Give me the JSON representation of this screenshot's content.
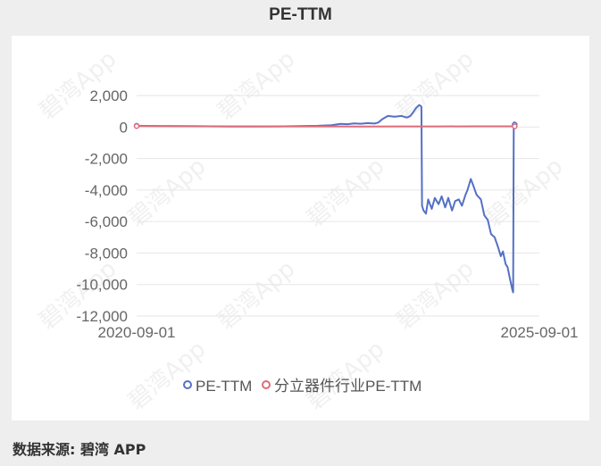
{
  "page": {
    "title": "PE-TTM",
    "source": "数据来源: 碧湾 APP",
    "watermark": "碧湾App"
  },
  "colors": {
    "pe_series": "#5470c6",
    "industry_series": "#e06c7a",
    "grid": "#e6e6e6",
    "axis_text": "#666666",
    "background": "#eeeeee",
    "panel": "#ffffff"
  },
  "chart_data": {
    "type": "line",
    "title": "PE-TTM",
    "xlabel": "",
    "ylabel": "",
    "ylim": [
      -12000,
      2000
    ],
    "yticks": [
      2000,
      0,
      -2000,
      -4000,
      -6000,
      -8000,
      -10000,
      -12000
    ],
    "ytick_labels": [
      "2,000",
      "0",
      "-2,000",
      "-4,000",
      "-6,000",
      "-8,000",
      "-10,000",
      "-12,000"
    ],
    "x_range": [
      "2020-09-01",
      "2025-09-01"
    ],
    "x_tick_labels": [
      "2020-09-01",
      "2025-09-01"
    ],
    "grid": true,
    "legend_position": "bottom",
    "series": [
      {
        "name": "PE-TTM",
        "color": "#5470c6",
        "points": [
          [
            "2020-09-01",
            80
          ],
          [
            "2020-12-01",
            70
          ],
          [
            "2021-03-01",
            60
          ],
          [
            "2021-06-01",
            50
          ],
          [
            "2021-09-01",
            40
          ],
          [
            "2021-12-01",
            30
          ],
          [
            "2022-03-01",
            30
          ],
          [
            "2022-06-01",
            40
          ],
          [
            "2022-09-01",
            60
          ],
          [
            "2022-12-01",
            80
          ],
          [
            "2023-02-01",
            120
          ],
          [
            "2023-03-15",
            200
          ],
          [
            "2023-04-15",
            180
          ],
          [
            "2023-05-15",
            230
          ],
          [
            "2023-06-15",
            210
          ],
          [
            "2023-07-15",
            250
          ],
          [
            "2023-08-15",
            220
          ],
          [
            "2023-09-01",
            280
          ],
          [
            "2023-09-20",
            500
          ],
          [
            "2023-10-15",
            700
          ],
          [
            "2023-11-15",
            650
          ],
          [
            "2023-12-15",
            700
          ],
          [
            "2024-01-10",
            600
          ],
          [
            "2024-01-25",
            700
          ],
          [
            "2024-02-05",
            900
          ],
          [
            "2024-02-20",
            1200
          ],
          [
            "2024-03-05",
            1400
          ],
          [
            "2024-03-15",
            1300
          ],
          [
            "2024-03-18",
            -5000
          ],
          [
            "2024-03-25",
            -5300
          ],
          [
            "2024-04-05",
            -5500
          ],
          [
            "2024-04-15",
            -4600
          ],
          [
            "2024-05-01",
            -5200
          ],
          [
            "2024-05-15",
            -4500
          ],
          [
            "2024-06-01",
            -4900
          ],
          [
            "2024-06-15",
            -4400
          ],
          [
            "2024-07-01",
            -5100
          ],
          [
            "2024-07-15",
            -4500
          ],
          [
            "2024-08-01",
            -5300
          ],
          [
            "2024-08-15",
            -4700
          ],
          [
            "2024-09-01",
            -4600
          ],
          [
            "2024-09-15",
            -5000
          ],
          [
            "2024-10-01",
            -4300
          ],
          [
            "2024-10-10",
            -4000
          ],
          [
            "2024-10-25",
            -3300
          ],
          [
            "2024-11-05",
            -3700
          ],
          [
            "2024-11-20",
            -4300
          ],
          [
            "2024-12-10",
            -4600
          ],
          [
            "2024-12-25",
            -5600
          ],
          [
            "2025-01-10",
            -5900
          ],
          [
            "2025-01-25",
            -6800
          ],
          [
            "2025-02-10",
            -7000
          ],
          [
            "2025-02-25",
            -7600
          ],
          [
            "2025-03-10",
            -8200
          ],
          [
            "2025-03-20",
            -7900
          ],
          [
            "2025-04-01",
            -8700
          ],
          [
            "2025-04-10",
            -8900
          ],
          [
            "2025-04-20",
            -9600
          ],
          [
            "2025-05-01",
            -10300
          ],
          [
            "2025-05-05",
            -10500
          ],
          [
            "2025-05-08",
            0
          ],
          [
            "2025-05-10",
            300
          ],
          [
            "2025-05-12",
            150
          ]
        ]
      },
      {
        "name": "分立器件行业PE-TTM",
        "color": "#e06c7a",
        "points": [
          [
            "2020-09-01",
            60
          ],
          [
            "2021-01-01",
            55
          ],
          [
            "2021-06-01",
            50
          ],
          [
            "2021-12-01",
            45
          ],
          [
            "2022-06-01",
            40
          ],
          [
            "2022-12-01",
            38
          ],
          [
            "2023-06-01",
            35
          ],
          [
            "2023-12-01",
            40
          ],
          [
            "2024-06-01",
            38
          ],
          [
            "2024-12-01",
            42
          ],
          [
            "2025-05-12",
            45
          ]
        ]
      }
    ]
  }
}
